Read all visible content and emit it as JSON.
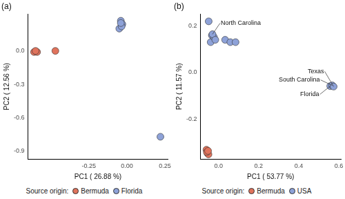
{
  "chart_data": [
    {
      "type": "scatter",
      "title": "(a)",
      "x_label": "PC1 ( 26.88 %)",
      "y_label": "PC2 ( 12.56 %)",
      "xlim": [
        -0.65,
        0.27
      ],
      "xticks": [
        -0.25,
        {
          "value": 0,
          "label": "0.00"
        },
        0.25
      ],
      "ylim": [
        -0.97,
        0.33
      ],
      "yticks": [
        -0.9,
        -0.6,
        -0.3,
        {
          "value": 0,
          "label": "0.0"
        }
      ],
      "grid": false,
      "legend": "bottom",
      "legend_title": "Source origin:",
      "series": [
        {
          "name": "Bermuda",
          "color": "#e0735c",
          "x": [
            -0.61,
            -0.59,
            -0.6,
            -0.47
          ],
          "values": [
            -0.01,
            -0.01,
            0.0,
            0.0
          ]
        },
        {
          "name": "Florida",
          "color": "#8ea2d8",
          "x": [
            -0.04,
            -0.03,
            -0.05,
            -0.035,
            -0.04,
            0.22
          ],
          "values": [
            0.27,
            0.24,
            0.2,
            0.22,
            0.25,
            -0.77
          ]
        }
      ]
    },
    {
      "type": "scatter",
      "title": "(b)",
      "x_label": "PC1 ( 53.77 %)",
      "y_label": "PC2 ( 11.57 %)",
      "xlim": [
        -0.09,
        0.61
      ],
      "xticks": [
        {
          "value": 0,
          "label": "0.0"
        },
        0.2,
        0.4,
        0.6
      ],
      "ylim": [
        -0.37,
        0.25
      ],
      "yticks": [
        -0.2,
        {
          "value": 0,
          "label": "0.0"
        },
        0.2
      ],
      "grid": false,
      "legend": "bottom",
      "legend_title": "Source origin:",
      "series": [
        {
          "name": "Bermuda",
          "color": "#e0735c",
          "x": [
            -0.06,
            -0.055,
            -0.05,
            -0.058,
            -0.052
          ],
          "values": [
            -0.33,
            -0.345,
            -0.35,
            -0.34,
            -0.335
          ]
        },
        {
          "name": "USA",
          "color": "#8ea2d8",
          "x": [
            -0.049,
            -0.039,
            -0.033,
            -0.023,
            -0.03,
            -0.016,
            0.033,
            0.059,
            0.085,
            0.557,
            0.567,
            0.574
          ],
          "values": [
            0.219,
            0.13,
            0.159,
            0.152,
            0.164,
            0.14,
            0.14,
            0.13,
            0.13,
            -0.058,
            -0.055,
            -0.06
          ]
        }
      ],
      "annotations": [
        {
          "text": "North Carolina",
          "x": -0.03,
          "y": 0.164
        },
        {
          "text": "Texas",
          "x": 0.574,
          "y": -0.06
        },
        {
          "text": "South Carolina",
          "x": 0.567,
          "y": -0.055
        },
        {
          "text": "Florida",
          "x": 0.557,
          "y": -0.058
        }
      ]
    }
  ]
}
